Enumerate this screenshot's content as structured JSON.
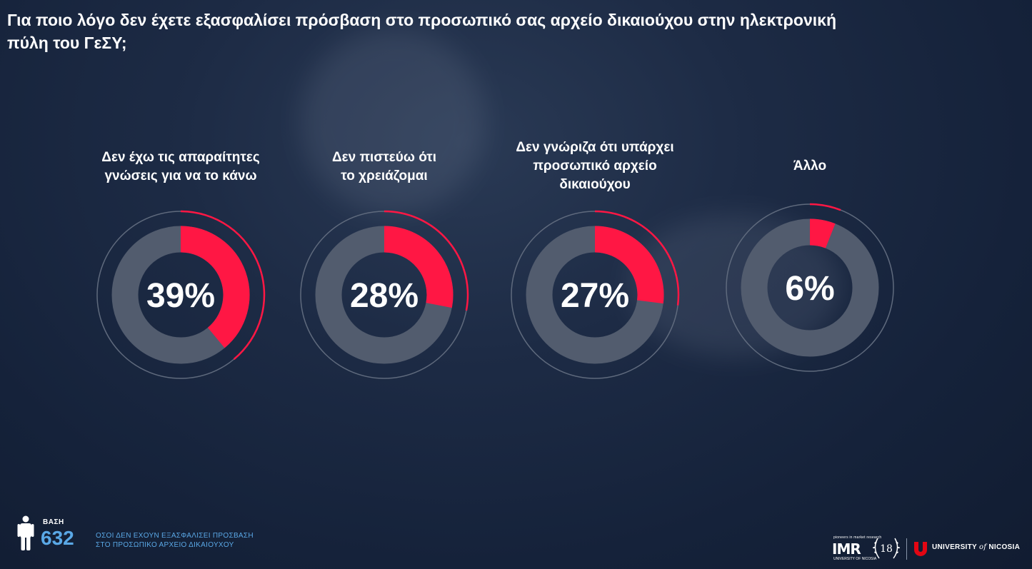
{
  "title": "Για ποιο λόγο δεν έχετε εξασφαλίσει πρόσβαση στο προσωπικό σας αρχείο δικαιούχου στην ηλεκτρονική πύλη του ΓεΣΥ;",
  "chart_data": {
    "type": "pie",
    "title": "Για ποιο λόγο δεν έχετε εξασφαλίσει πρόσβαση στο προσωπικό σας αρχείο δικαιούχου στην ηλεκτρονική πύλη του ΓεΣΥ;",
    "categories": [
      "Δεν έχω τις απαραίτητες γνώσεις για να το κάνω",
      "Δεν πιστεύω ότι το χρειάζομαι",
      "Δεν γνώριζα ότι υπάρχει προσωπικό αρχείο δικαιούχου",
      "Άλλο"
    ],
    "values": [
      39,
      28,
      27,
      6
    ],
    "labels_display": [
      "39%",
      "28%",
      "27%",
      "6%"
    ],
    "label_lines": [
      [
        "Δεν έχω τις απαραίτητες",
        "γνώσεις για να το κάνω"
      ],
      [
        "Δεν πιστεύω ότι",
        "το χρειάζομαι"
      ],
      [
        "Δεν γνώριζα ότι υπάρχει",
        "προσωπικό αρχείο",
        "δικαιούχου"
      ],
      [
        "Άλλο"
      ]
    ],
    "unit": "%",
    "colors": {
      "fill": "#ff1744",
      "track": "#525c6e",
      "outer_ring": "#5f6a7d"
    }
  },
  "footer": {
    "base_label": "ΒΑΣΗ",
    "base_value": "632",
    "base_desc_lines": [
      "ΟΣΟΙ ΔΕΝ ΕΧΟΥΝ ΕΞΑΣΦΑΛΙΣΕΙ ΠΡΟΣΒΑΣΗ",
      "ΣΤΟ ΠΡΟΣΩΠΙΚΟ ΑΡΧΕΙΟ ΔΙΚΑΙΟΥΧΟΥ"
    ],
    "person_icon": "person-icon"
  },
  "logos": {
    "imr_top": "pioneers in market research",
    "imr": "IMR",
    "imr_sub": "UNIVERSITY OF NICOSIA",
    "anniversary": "18",
    "unic_prefix": "UNIVERSITY",
    "unic_of": "of",
    "unic_suffix": "NICOSIA"
  }
}
